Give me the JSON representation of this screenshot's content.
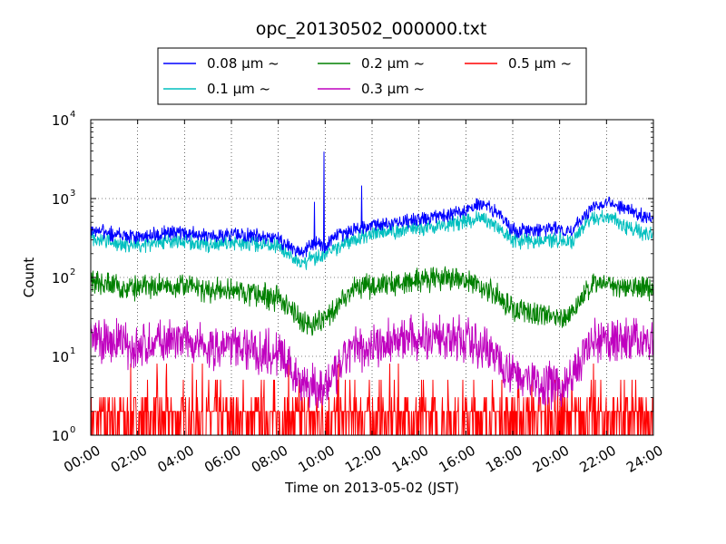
{
  "chart_data": {
    "type": "line",
    "title": "opc_20130502_000000.txt",
    "xlabel": "Time on 2013-05-02 (JST)",
    "ylabel": "Count",
    "yscale": "log",
    "ylim": [
      1,
      10000
    ],
    "xlim": [
      "00:00",
      "24:00"
    ],
    "x_ticks": [
      "00:00",
      "02:00",
      "04:00",
      "06:00",
      "08:00",
      "10:00",
      "12:00",
      "14:00",
      "16:00",
      "18:00",
      "20:00",
      "22:00",
      "24:00"
    ],
    "y_ticks": [
      {
        "base": "10",
        "exp": "0"
      },
      {
        "base": "10",
        "exp": "1"
      },
      {
        "base": "10",
        "exp": "2"
      },
      {
        "base": "10",
        "exp": "3"
      },
      {
        "base": "10",
        "exp": "4"
      }
    ],
    "grid": true,
    "legend_position": "top-center",
    "x_hours": [
      0,
      1,
      2,
      3,
      4,
      5,
      6,
      7,
      8,
      8.5,
      9,
      9.5,
      10,
      10.5,
      11,
      11.5,
      12,
      13,
      14,
      15,
      16,
      16.5,
      17,
      17.5,
      18,
      19,
      20,
      20.5,
      21,
      21.5,
      22,
      23,
      24
    ],
    "series": [
      {
        "name": "0.08 µm ~",
        "color": "#0000ff",
        "values": [
          400,
          350,
          320,
          360,
          370,
          330,
          350,
          340,
          310,
          240,
          200,
          270,
          250,
          330,
          380,
          420,
          460,
          500,
          550,
          590,
          720,
          850,
          780,
          600,
          400,
          390,
          420,
          380,
          600,
          800,
          950,
          700,
          550
        ]
      },
      {
        "name": "0.1 µm ~",
        "color": "#00bfbf",
        "values": [
          320,
          280,
          250,
          280,
          290,
          260,
          280,
          270,
          250,
          190,
          150,
          180,
          190,
          240,
          290,
          320,
          350,
          380,
          420,
          460,
          520,
          580,
          520,
          420,
          300,
          290,
          310,
          280,
          450,
          560,
          600,
          420,
          330
        ]
      },
      {
        "name": "0.2 µm ~",
        "color": "#008000",
        "values": [
          90,
          80,
          70,
          80,
          80,
          65,
          70,
          60,
          55,
          40,
          28,
          25,
          30,
          45,
          65,
          75,
          80,
          85,
          90,
          95,
          90,
          80,
          70,
          55,
          40,
          35,
          30,
          35,
          60,
          80,
          85,
          75,
          75
        ]
      },
      {
        "name": "0.3 µm ~",
        "color": "#bf00bf",
        "values": [
          17,
          15,
          13,
          15,
          15,
          12,
          14,
          12,
          11,
          7,
          5,
          4,
          4,
          6,
          11,
          13,
          14,
          16,
          17,
          18,
          16,
          14,
          12,
          9,
          6,
          5,
          4,
          5,
          10,
          15,
          16,
          16,
          16
        ]
      },
      {
        "name": "0.5 µm ~",
        "color": "#ff0000",
        "values": [
          2,
          2,
          2,
          2,
          1.5,
          1.5,
          2,
          1.5,
          1.5,
          1.2,
          1,
          1,
          1,
          1.2,
          1.5,
          1.5,
          2,
          2,
          2,
          2,
          2,
          2,
          1.5,
          1.5,
          1.2,
          1.2,
          1,
          1,
          1.5,
          2,
          2,
          2,
          2
        ]
      }
    ],
    "spikes": [
      {
        "series": "0.08 µm ~",
        "x_hour": 9.95,
        "value": 3900
      },
      {
        "series": "0.08 µm ~",
        "x_hour": 9.55,
        "value": 900
      },
      {
        "series": "0.08 µm ~",
        "x_hour": 11.55,
        "value": 1450
      }
    ]
  }
}
